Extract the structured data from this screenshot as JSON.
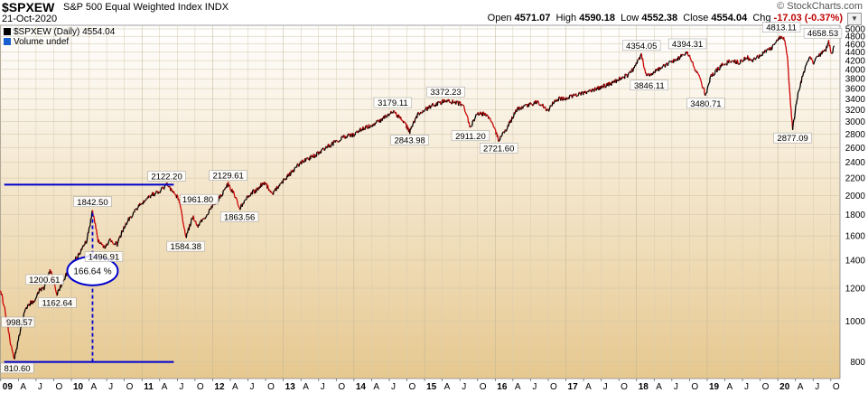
{
  "header": {
    "symbol": "$SPXEW",
    "name": "S&P 500 Equal Weighted Index",
    "exchange": "INDX",
    "date": "21-Oct-2020",
    "brand": "© StockCharts.com",
    "ohlc": {
      "open_label": "Open",
      "open": "4571.07",
      "high_label": "High",
      "high": "4590.18",
      "low_label": "Low",
      "low": "4552.38",
      "close_label": "Close",
      "close": "4554.04",
      "chg_label": "Chg",
      "chg": "-17.03 (-0.37%)"
    },
    "menu_icon": "triangle-down-icon"
  },
  "legend": {
    "price": "$SPXEW (Daily) 4554.04",
    "volume": "Volume undef"
  },
  "colors": {
    "background_top": "#ffffff",
    "background_bottom": "#e6c88f",
    "bar_up": "#000000",
    "bar_down": "#cc0000",
    "annotation": "#0000cc"
  },
  "chart_data": {
    "type": "line",
    "title": "$SPXEW S&P 500 Equal Weighted Index",
    "scale": "log",
    "ylim": [
      730,
      5100
    ],
    "y_ticks": [
      800,
      1000,
      1200,
      1400,
      1600,
      1800,
      2000,
      2200,
      2400,
      2600,
      2800,
      3000,
      3200,
      3400,
      3600,
      3800,
      4000,
      4200,
      4400,
      4600,
      4800,
      5000
    ],
    "x_tick_labels": [
      "09",
      "A",
      "J",
      "O",
      "10",
      "A",
      "J",
      "O",
      "11",
      "A",
      "J",
      "O",
      "12",
      "A",
      "J",
      "O",
      "13",
      "A",
      "J",
      "O",
      "14",
      "A",
      "J",
      "O",
      "15",
      "A",
      "J",
      "O",
      "16",
      "A",
      "J",
      "O",
      "17",
      "A",
      "J",
      "O",
      "18",
      "A",
      "J",
      "O",
      "19",
      "A",
      "J",
      "O",
      "20",
      "A",
      "J",
      "O"
    ],
    "x_tick_years": [
      2009.0,
      2009.25,
      2009.5,
      2009.75,
      2010.0,
      2010.25,
      2010.5,
      2010.75,
      2011.0,
      2011.25,
      2011.5,
      2011.75,
      2012.0,
      2012.25,
      2012.5,
      2012.75,
      2013.0,
      2013.25,
      2013.5,
      2013.75,
      2014.0,
      2014.25,
      2014.5,
      2014.75,
      2015.0,
      2015.25,
      2015.5,
      2015.75,
      2016.0,
      2016.25,
      2016.5,
      2016.75,
      2017.0,
      2017.25,
      2017.5,
      2017.75,
      2018.0,
      2018.25,
      2018.5,
      2018.75,
      2019.0,
      2019.25,
      2019.5,
      2019.75,
      2020.0,
      2020.25,
      2020.5,
      2020.75
    ],
    "series": [
      {
        "values": [
          [
            2009.0,
            1190
          ],
          [
            2009.08,
            1020
          ],
          [
            2009.14,
            880
          ],
          [
            2009.19,
            810.6
          ],
          [
            2009.25,
            905
          ],
          [
            2009.33,
            1040
          ],
          [
            2009.4,
            1100
          ],
          [
            2009.47,
            1120
          ],
          [
            2009.55,
            1190
          ],
          [
            2009.62,
            1200.61
          ],
          [
            2009.7,
            1330
          ],
          [
            2009.8,
            1162.64
          ],
          [
            2009.9,
            1270
          ],
          [
            2010.0,
            1360
          ],
          [
            2010.1,
            1440
          ],
          [
            2010.22,
            1560
          ],
          [
            2010.3,
            1842.5
          ],
          [
            2010.38,
            1560
          ],
          [
            2010.46,
            1496.91
          ],
          [
            2010.55,
            1560
          ],
          [
            2010.65,
            1530
          ],
          [
            2010.75,
            1690
          ],
          [
            2010.9,
            1840
          ],
          [
            2011.0,
            1920
          ],
          [
            2011.15,
            2010
          ],
          [
            2011.25,
            2040
          ],
          [
            2011.35,
            2122.2
          ],
          [
            2011.45,
            2040
          ],
          [
            2011.52,
            1961.8
          ],
          [
            2011.58,
            1740
          ],
          [
            2011.62,
            1584.38
          ],
          [
            2011.72,
            1780
          ],
          [
            2011.8,
            1690
          ],
          [
            2011.9,
            1790
          ],
          [
            2012.0,
            1880
          ],
          [
            2012.12,
            2000
          ],
          [
            2012.22,
            2129.61
          ],
          [
            2012.3,
            2020
          ],
          [
            2012.38,
            1863.56
          ],
          [
            2012.5,
            2000
          ],
          [
            2012.62,
            2060
          ],
          [
            2012.72,
            2150
          ],
          [
            2012.85,
            2030
          ],
          [
            2013.0,
            2160
          ],
          [
            2013.15,
            2310
          ],
          [
            2013.3,
            2430
          ],
          [
            2013.4,
            2470
          ],
          [
            2013.5,
            2520
          ],
          [
            2013.6,
            2600
          ],
          [
            2013.75,
            2690
          ],
          [
            2013.9,
            2780
          ],
          [
            2014.0,
            2790
          ],
          [
            2014.1,
            2880
          ],
          [
            2014.25,
            2940
          ],
          [
            2014.4,
            3040
          ],
          [
            2014.55,
            3179.11
          ],
          [
            2014.7,
            3010
          ],
          [
            2014.79,
            2843.98
          ],
          [
            2014.9,
            3110
          ],
          [
            2015.0,
            3200
          ],
          [
            2015.15,
            3300
          ],
          [
            2015.3,
            3372.23
          ],
          [
            2015.45,
            3330
          ],
          [
            2015.55,
            3300
          ],
          [
            2015.62,
            3010
          ],
          [
            2015.65,
            2911.2
          ],
          [
            2015.75,
            3150
          ],
          [
            2015.85,
            3120
          ],
          [
            2015.95,
            3020
          ],
          [
            2016.05,
            2721.6
          ],
          [
            2016.15,
            2860
          ],
          [
            2016.3,
            3200
          ],
          [
            2016.45,
            3290
          ],
          [
            2016.6,
            3340
          ],
          [
            2016.75,
            3200
          ],
          [
            2016.85,
            3380
          ],
          [
            2017.0,
            3420
          ],
          [
            2017.15,
            3480
          ],
          [
            2017.3,
            3530
          ],
          [
            2017.45,
            3600
          ],
          [
            2017.6,
            3680
          ],
          [
            2017.75,
            3790
          ],
          [
            2017.9,
            3900
          ],
          [
            2018.0,
            4120
          ],
          [
            2018.07,
            4354.05
          ],
          [
            2018.12,
            3950
          ],
          [
            2018.18,
            3846.11
          ],
          [
            2018.3,
            4000
          ],
          [
            2018.45,
            4120
          ],
          [
            2018.6,
            4260
          ],
          [
            2018.72,
            4394.31
          ],
          [
            2018.82,
            4050
          ],
          [
            2018.9,
            3800
          ],
          [
            2018.98,
            3480.71
          ],
          [
            2019.05,
            3850
          ],
          [
            2019.2,
            4080
          ],
          [
            2019.35,
            4200
          ],
          [
            2019.45,
            4150
          ],
          [
            2019.55,
            4280
          ],
          [
            2019.65,
            4200
          ],
          [
            2019.75,
            4320
          ],
          [
            2019.9,
            4480
          ],
          [
            2020.05,
            4813.11
          ],
          [
            2020.1,
            4700
          ],
          [
            2020.14,
            4200
          ],
          [
            2020.18,
            3300
          ],
          [
            2020.21,
            2877.09
          ],
          [
            2020.27,
            3400
          ],
          [
            2020.35,
            3850
          ],
          [
            2020.45,
            4300
          ],
          [
            2020.5,
            4150
          ],
          [
            2020.6,
            4350
          ],
          [
            2020.68,
            4450
          ],
          [
            2020.72,
            4658.53
          ],
          [
            2020.76,
            4330
          ],
          [
            2020.8,
            4554.04
          ]
        ]
      }
    ],
    "price_labels": [
      {
        "t": 2009.19,
        "v": 810.6,
        "text": "810.60",
        "pos": "below"
      },
      {
        "t": 2009.62,
        "v": 1200.61,
        "text": "1200.61",
        "pos": "above"
      },
      {
        "t": 2009.8,
        "v": 1162.64,
        "text": "1162.64",
        "pos": "below"
      },
      {
        "t": 2009.19,
        "v": 998.57,
        "text": "998.57",
        "pos": "left"
      },
      {
        "t": 2010.3,
        "v": 1842.5,
        "text": "1842.50",
        "pos": "above"
      },
      {
        "t": 2010.46,
        "v": 1496.91,
        "text": "1496.91",
        "pos": "below"
      },
      {
        "t": 2011.35,
        "v": 2122.2,
        "text": "2122.20",
        "pos": "above"
      },
      {
        "t": 2011.52,
        "v": 1961.8,
        "text": "1961.80",
        "pos": "right"
      },
      {
        "t": 2011.62,
        "v": 1584.38,
        "text": "1584.38",
        "pos": "below"
      },
      {
        "t": 2012.22,
        "v": 2129.61,
        "text": "2129.61",
        "pos": "above"
      },
      {
        "t": 2012.38,
        "v": 1863.56,
        "text": "1863.56",
        "pos": "below"
      },
      {
        "t": 2014.55,
        "v": 3179.11,
        "text": "3179.11",
        "pos": "above"
      },
      {
        "t": 2014.79,
        "v": 2843.98,
        "text": "2843.98",
        "pos": "below"
      },
      {
        "t": 2015.3,
        "v": 3372.23,
        "text": "3372.23",
        "pos": "above"
      },
      {
        "t": 2015.65,
        "v": 2911.2,
        "text": "2911.20",
        "pos": "below"
      },
      {
        "t": 2016.05,
        "v": 2721.6,
        "text": "2721.60",
        "pos": "below"
      },
      {
        "t": 2018.07,
        "v": 4354.05,
        "text": "4354.05",
        "pos": "above"
      },
      {
        "t": 2018.18,
        "v": 3846.11,
        "text": "3846.11",
        "pos": "below"
      },
      {
        "t": 2018.72,
        "v": 4394.31,
        "text": "4394.31",
        "pos": "above"
      },
      {
        "t": 2018.98,
        "v": 3480.71,
        "text": "3480.71",
        "pos": "below"
      },
      {
        "t": 2020.05,
        "v": 4813.11,
        "text": "4813.11",
        "pos": "above"
      },
      {
        "t": 2020.21,
        "v": 2877.09,
        "text": "2877.09",
        "pos": "below"
      },
      {
        "t": 2020.72,
        "v": 4658.53,
        "text": "4658.53",
        "pos": "above"
      }
    ],
    "annotations": {
      "top_line": {
        "t0": 2009.05,
        "t1": 2011.45,
        "v": 2122.2
      },
      "bottom_line": {
        "t0": 2009.05,
        "t1": 2011.45,
        "v": 800
      },
      "vertical_dashed": {
        "t": 2010.3,
        "v0": 800,
        "v1": 1842.5
      },
      "gain_label": "166.64 %",
      "gain_label_at": {
        "t": 2010.3,
        "v": 1320
      }
    }
  }
}
